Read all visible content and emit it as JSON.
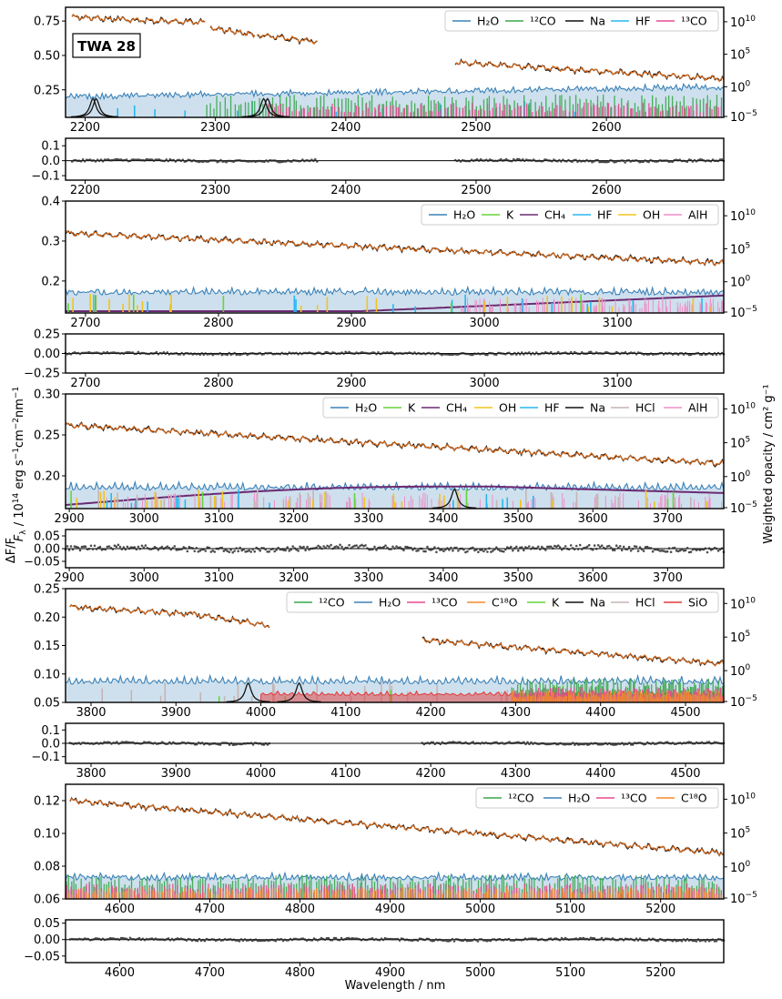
{
  "figure": {
    "target_label": "TWA 28",
    "xlabel": "Wavelength / nm",
    "ylabel_flux_prefix": "F",
    "ylabel_flux_sub": "λ",
    "ylabel_flux_text": "/ 10",
    "ylabel_flux_exp": "14",
    "ylabel_flux_units": " erg s",
    "ylabel_resid": "ΔF/F",
    "ylabel_right": "Weighted opacity / cm² g⁻¹",
    "colors": {
      "data": "#111111",
      "model": "#d2691e",
      "H2O": "#3b82b8",
      "12CO": "#3aa64a",
      "13CO": "#e8488f",
      "C18O": "#f58c2a",
      "Na": "#111111",
      "HF": "#27b7f0",
      "K": "#66d43a",
      "CH4": "#6b2a72",
      "OH": "#f3c31d",
      "AlH": "#ef8fc8",
      "HCl": "#c7b4b4",
      "SiO": "#e23a3a"
    }
  },
  "chart_data": [
    {
      "type": "line",
      "panel": 1,
      "xlim": [
        2185,
        2690
      ],
      "ylim": [
        0.05,
        0.85
      ],
      "yticks": [
        "0.25",
        "0.50",
        "0.75"
      ],
      "xticks": [
        "2200",
        "2300",
        "2400",
        "2500",
        "2600"
      ],
      "opacity_ticks": [
        "10^10",
        "10^5",
        "10^0",
        "10^-5"
      ],
      "legend": [
        {
          "label": "H₂O",
          "key": "H2O"
        },
        {
          "label": "¹²CO",
          "key": "12CO"
        },
        {
          "label": "Na",
          "key": "Na"
        },
        {
          "label": "HF",
          "key": "HF"
        },
        {
          "label": "¹³CO",
          "key": "13CO"
        }
      ],
      "flux_segments": [
        {
          "x": [
            2190,
            2228
          ],
          "y": [
            0.78,
            0.76
          ]
        },
        {
          "x": [
            2228,
            2292
          ],
          "y": [
            0.76,
            0.74
          ]
        },
        {
          "x": [
            2296,
            2330
          ],
          "y": [
            0.7,
            0.65
          ]
        },
        {
          "x": [
            2332,
            2378
          ],
          "y": [
            0.65,
            0.6
          ]
        },
        {
          "x": [
            2484,
            2690
          ],
          "y": [
            0.45,
            0.33
          ]
        }
      ],
      "resid": {
        "ylim": [
          -0.13,
          0.15
        ],
        "yticks": [
          "0.1",
          "0.0",
          "-0.1"
        ],
        "segments": [
          [
            2190,
            2378
          ],
          [
            2484,
            2690
          ]
        ]
      }
    },
    {
      "type": "line",
      "panel": 2,
      "xlim": [
        2685,
        3180
      ],
      "ylim": [
        0.12,
        0.4
      ],
      "yticks": [
        "0.2",
        "0.3",
        "0.4"
      ],
      "xticks": [
        "2700",
        "2800",
        "2900",
        "3000",
        "3100"
      ],
      "opacity_ticks": [
        "10^10",
        "10^5",
        "10^0",
        "10^-5"
      ],
      "legend": [
        {
          "label": "H₂O",
          "key": "H2O"
        },
        {
          "label": "K",
          "key": "K"
        },
        {
          "label": "CH₄",
          "key": "CH4"
        },
        {
          "label": "HF",
          "key": "HF"
        },
        {
          "label": "OH",
          "key": "OH"
        },
        {
          "label": "AlH",
          "key": "AlH"
        }
      ],
      "flux_segments": [
        {
          "x": [
            2685,
            3180
          ],
          "y": [
            0.32,
            0.245
          ]
        }
      ],
      "resid": {
        "ylim": [
          -0.25,
          0.25
        ],
        "yticks": [
          "0.25",
          "0.00",
          "-0.25"
        ],
        "segments": [
          [
            2685,
            3180
          ]
        ]
      }
    },
    {
      "type": "line",
      "panel": 3,
      "xlim": [
        2895,
        3775
      ],
      "ylim": [
        0.16,
        0.3
      ],
      "yticks": [
        "0.20",
        "0.25",
        "0.30"
      ],
      "xticks": [
        "2900",
        "3000",
        "3100",
        "3200",
        "3300",
        "3400",
        "3500",
        "3600",
        "3700"
      ],
      "opacity_ticks": [
        "10^10",
        "10^5",
        "10^0",
        "10^-5"
      ],
      "legend": [
        {
          "label": "H₂O",
          "key": "H2O"
        },
        {
          "label": "K",
          "key": "K"
        },
        {
          "label": "CH₄",
          "key": "CH4"
        },
        {
          "label": "OH",
          "key": "OH"
        },
        {
          "label": "HF",
          "key": "HF"
        },
        {
          "label": "Na",
          "key": "Na"
        },
        {
          "label": "HCl",
          "key": "HCl"
        },
        {
          "label": "AlH",
          "key": "AlH"
        }
      ],
      "flux_segments": [
        {
          "x": [
            2895,
            3775
          ],
          "y": [
            0.262,
            0.215
          ]
        }
      ],
      "resid": {
        "ylim": [
          -0.075,
          0.075
        ],
        "yticks": [
          "0.05",
          "0.00",
          "-0.05"
        ],
        "segments": [
          [
            2895,
            3775
          ]
        ]
      }
    },
    {
      "type": "line",
      "panel": 4,
      "xlim": [
        3770,
        4545
      ],
      "ylim": [
        0.05,
        0.25
      ],
      "yticks": [
        "0.05",
        "0.10",
        "0.15",
        "0.20",
        "0.25"
      ],
      "xticks": [
        "3800",
        "3900",
        "4000",
        "4100",
        "4200",
        "4300",
        "4400",
        "4500"
      ],
      "opacity_ticks": [
        "10^10",
        "10^5",
        "10^0",
        "10^-5"
      ],
      "legend": [
        {
          "label": "¹²CO",
          "key": "12CO"
        },
        {
          "label": "H₂O",
          "key": "H2O"
        },
        {
          "label": "¹³CO",
          "key": "13CO"
        },
        {
          "label": "C¹⁸O",
          "key": "C18O"
        },
        {
          "label": "K",
          "key": "K"
        },
        {
          "label": "Na",
          "key": "Na"
        },
        {
          "label": "HCl",
          "key": "HCl"
        },
        {
          "label": "SiO",
          "key": "SiO"
        }
      ],
      "flux_segments": [
        {
          "x": [
            3775,
            3920
          ],
          "y": [
            0.218,
            0.205
          ]
        },
        {
          "x": [
            3920,
            4010
          ],
          "y": [
            0.205,
            0.185
          ]
        },
        {
          "x": [
            4190,
            4545
          ],
          "y": [
            0.16,
            0.118
          ]
        }
      ],
      "resid": {
        "ylim": [
          -0.15,
          0.15
        ],
        "yticks": [
          "0.1",
          "0.0",
          "-0.1"
        ],
        "segments": [
          [
            3775,
            4010
          ],
          [
            4190,
            4545
          ]
        ]
      }
    },
    {
      "type": "line",
      "panel": 5,
      "xlim": [
        4540,
        5270
      ],
      "ylim": [
        0.06,
        0.13
      ],
      "yticks": [
        "0.06",
        "0.08",
        "0.10",
        "0.12"
      ],
      "xticks": [
        "4600",
        "4700",
        "4800",
        "4900",
        "5000",
        "5100",
        "5200"
      ],
      "opacity_ticks": [
        "10^10",
        "10^5",
        "10^0",
        "10^-5"
      ],
      "legend": [
        {
          "label": "¹²CO",
          "key": "12CO"
        },
        {
          "label": "H₂O",
          "key": "H2O"
        },
        {
          "label": "¹³CO",
          "key": "13CO"
        },
        {
          "label": "C¹⁸O",
          "key": "C18O"
        }
      ],
      "flux_segments": [
        {
          "x": [
            4545,
            5270
          ],
          "y": [
            0.12,
            0.088
          ]
        }
      ],
      "resid": {
        "ylim": [
          -0.07,
          0.06
        ],
        "yticks": [
          "0.05",
          "0.00",
          "-0.05"
        ],
        "segments": [
          [
            4545,
            5270
          ]
        ]
      }
    }
  ]
}
